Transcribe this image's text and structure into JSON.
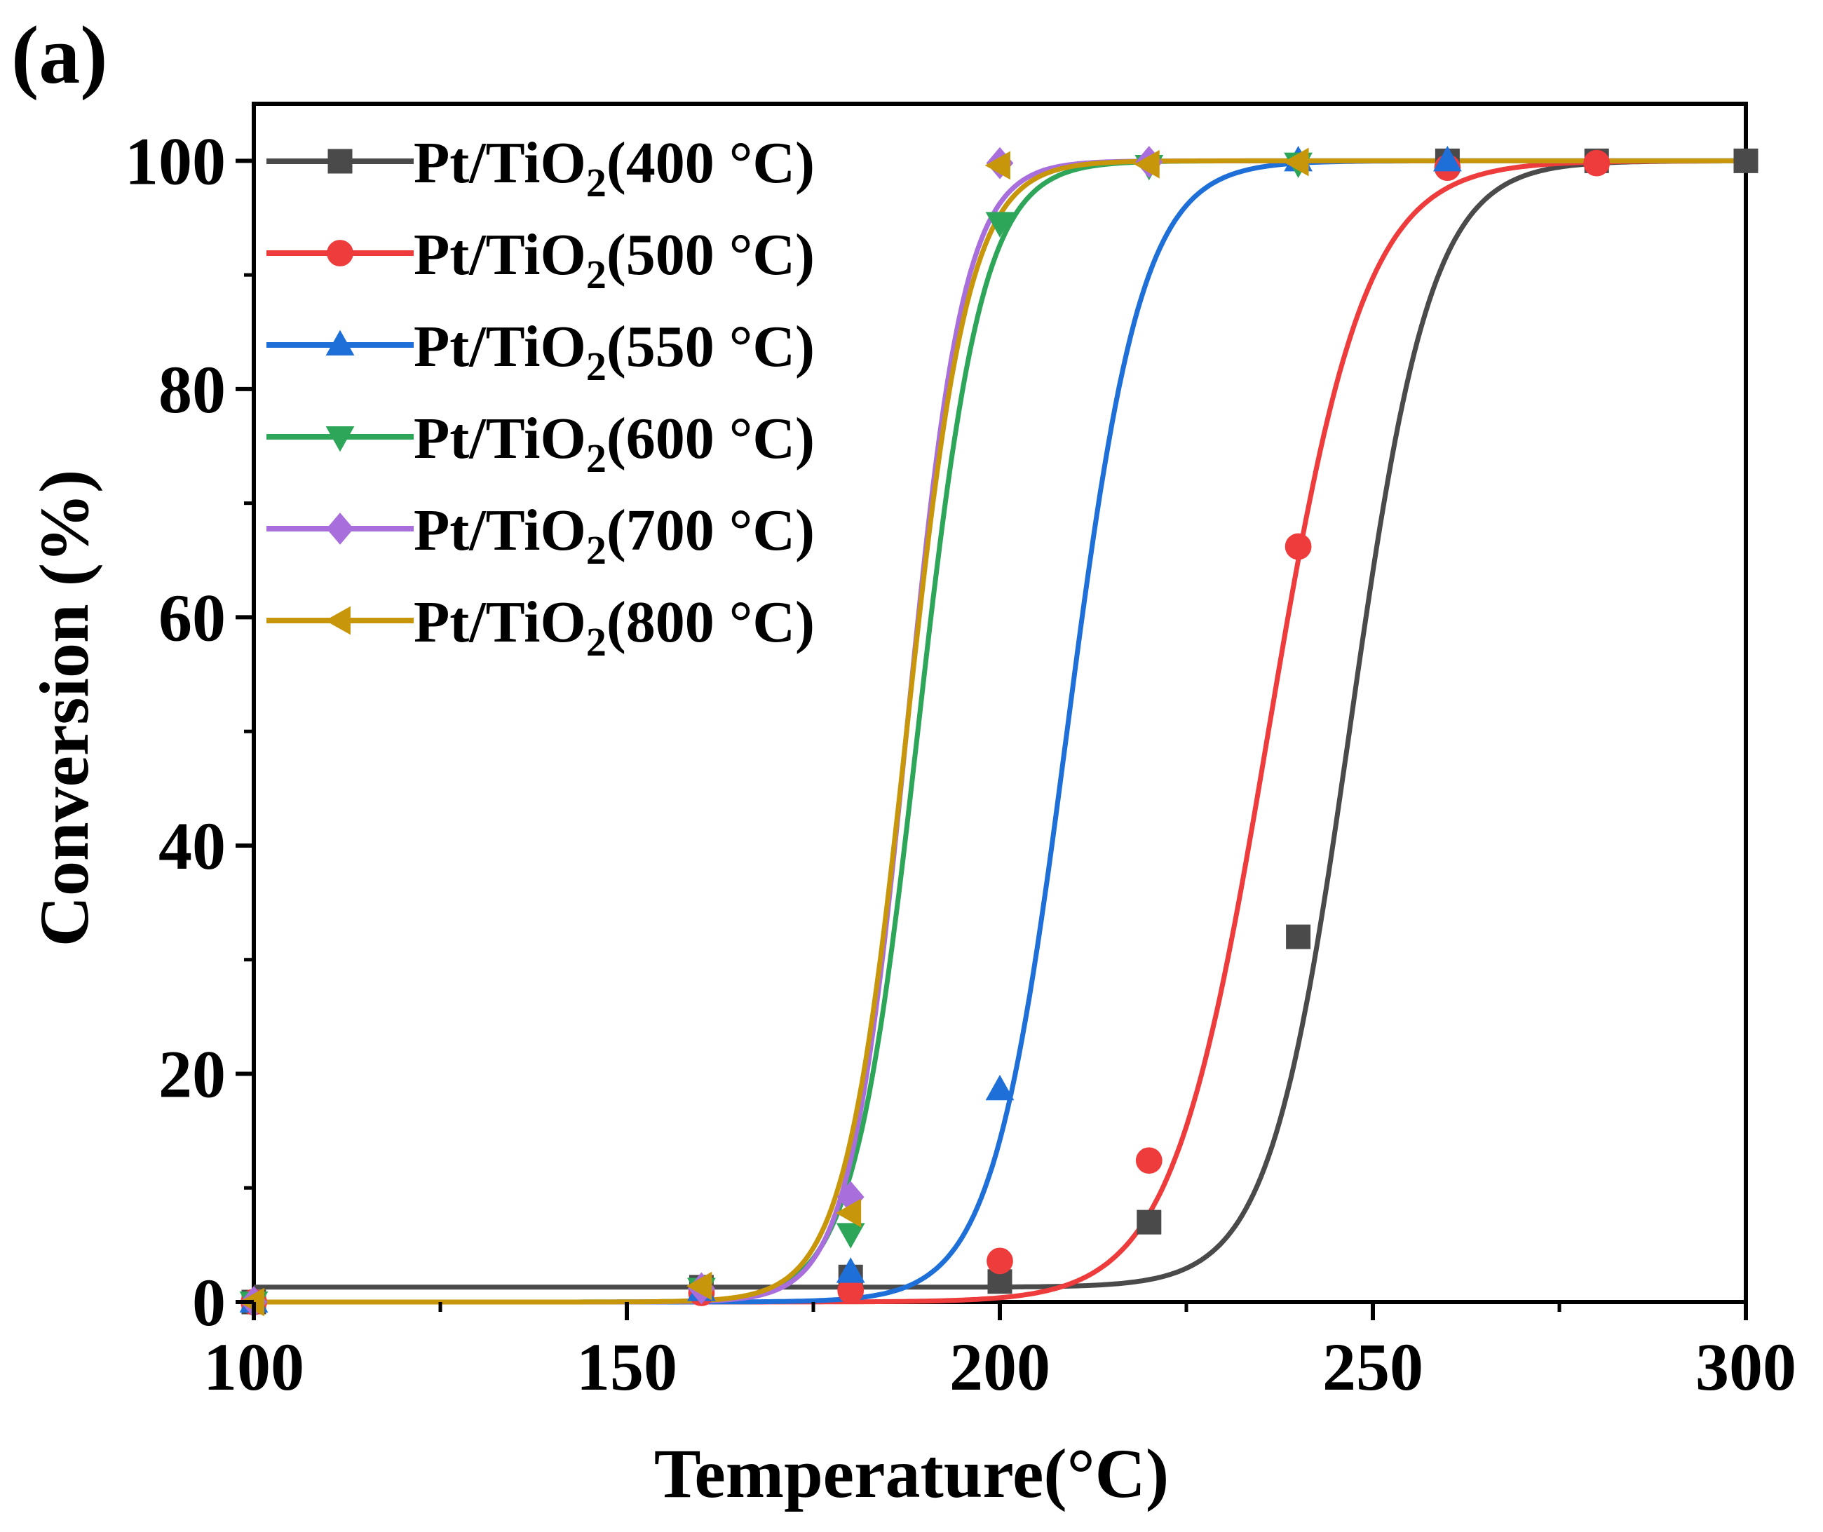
{
  "panel_label": "(a)",
  "chart_data": {
    "type": "scatter",
    "title": "",
    "xlabel": "Temperature(°C)",
    "ylabel": "Conversion (%)",
    "xlim": [
      100,
      300
    ],
    "ylim": [
      0,
      105
    ],
    "x_ticks": [
      100,
      150,
      200,
      250,
      300
    ],
    "y_ticks": [
      0,
      20,
      40,
      60,
      80,
      100
    ],
    "x_tick_labels": [
      "100",
      "150",
      "200",
      "250",
      "300"
    ],
    "y_tick_labels": [
      "0",
      "20",
      "40",
      "60",
      "80",
      "100"
    ],
    "grid": false,
    "legend_position": "top-left",
    "series": [
      {
        "name": "Pt/TiO2(400 °C)",
        "label_main": "Pt/TiO",
        "label_sub": "2",
        "label_tail": "(400 °C)",
        "color": "#4a4a4a",
        "marker": "square",
        "x": [
          100,
          160,
          180,
          200,
          220,
          240,
          260,
          280,
          300
        ],
        "values": [
          0,
          1.3,
          2.2,
          1.8,
          7.0,
          32.0,
          100,
          100,
          100
        ],
        "fit": {
          "t50": 247,
          "k": 0.185,
          "base": 1.3
        }
      },
      {
        "name": "Pt/TiO2(500 °C)",
        "label_main": "Pt/TiO",
        "label_sub": "2",
        "label_tail": "(500 °C)",
        "color": "#ee3b3b",
        "marker": "circle",
        "x": [
          100,
          160,
          180,
          200,
          220,
          240,
          260,
          280
        ],
        "values": [
          0,
          0.8,
          1.0,
          3.6,
          12.4,
          66.2,
          99.4,
          99.8
        ],
        "fit": {
          "t50": 236,
          "k": 0.155,
          "base": 0
        }
      },
      {
        "name": "Pt/TiO2(550 °C)",
        "label_main": "Pt/TiO",
        "label_sub": "2",
        "label_tail": "(550 °C)",
        "color": "#1f6fd9",
        "marker": "triangle-up",
        "x": [
          100,
          160,
          180,
          200,
          240,
          260
        ],
        "values": [
          0,
          1.0,
          2.6,
          18.6,
          100,
          100
        ],
        "fit": {
          "t50": 209,
          "k": 0.2,
          "base": 0
        }
      },
      {
        "name": "Pt/TiO2(600 °C)",
        "label_main": "Pt/TiO",
        "label_sub": "2",
        "label_tail": "(600 °C)",
        "color": "#2ea65a",
        "marker": "triangle-down",
        "x": [
          100,
          160,
          180,
          200,
          220,
          240
        ],
        "values": [
          0,
          1.2,
          6.0,
          94.6,
          99.6,
          99.8
        ],
        "fit": {
          "t50": 189,
          "k": 0.23,
          "base": 0
        }
      },
      {
        "name": "Pt/TiO2(700 °C)",
        "label_main": "Pt/TiO",
        "label_sub": "2",
        "label_tail": "(700 °C)",
        "color": "#a86fdc",
        "marker": "diamond",
        "x": [
          100,
          160,
          180,
          200,
          220
        ],
        "values": [
          0,
          1.2,
          9.2,
          99.8,
          99.9
        ],
        "fit": {
          "t50": 187.5,
          "k": 0.26,
          "base": 0
        }
      },
      {
        "name": "Pt/TiO2(800 °C)",
        "label_main": "Pt/TiO",
        "label_sub": "2",
        "label_tail": "(800 °C)",
        "color": "#c8960a",
        "marker": "triangle-left",
        "x": [
          100,
          160,
          180,
          200,
          220,
          240
        ],
        "values": [
          0,
          1.4,
          7.8,
          99.6,
          99.7,
          99.9
        ],
        "fit": {
          "t50": 187.5,
          "k": 0.24,
          "base": 0
        }
      }
    ]
  }
}
